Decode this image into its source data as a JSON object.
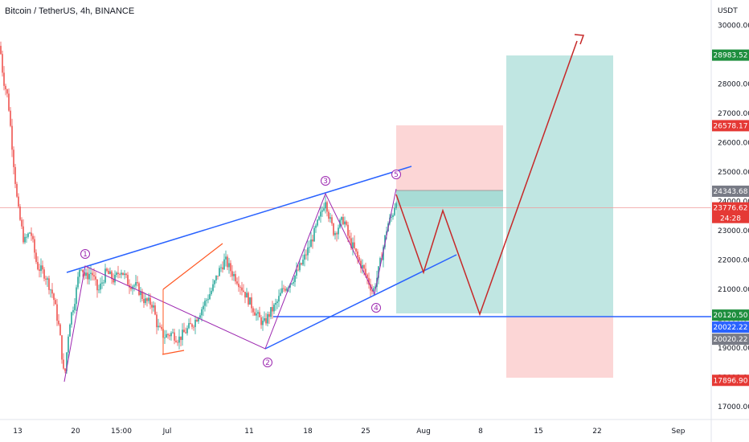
{
  "header": {
    "title": "Bitcoin / TetherUS, 4h, BINANCE"
  },
  "colors": {
    "up": "#26a69a",
    "down": "#ef5350",
    "trend": "#2962ff",
    "wave": "#9c27b0",
    "projection": "#c62828",
    "orange": "#ff5722",
    "stop_zone": "#fcd6d6",
    "target_zone": "#c0e6e2",
    "target_zone_dark": "#a8dcd6"
  },
  "chart_data": {
    "type": "candlestick",
    "symbol": "Bitcoin / TetherUS",
    "interval": "4h",
    "exchange": "BINANCE",
    "y_unit": "USDT",
    "ylim": [
      16800,
      30400
    ],
    "y_ticks": [
      17000,
      18000,
      19000,
      20000,
      21000,
      22000,
      23000,
      24000,
      25000,
      26000,
      27000,
      28000,
      29000,
      30000
    ],
    "x_ticks": [
      "13",
      "20",
      "15:00",
      "Jul",
      "11",
      "18",
      "25",
      "Aug",
      "8",
      "15",
      "22",
      "Sep"
    ],
    "price_path": [
      [
        0,
        29300
      ],
      [
        4,
        28200
      ],
      [
        10,
        27500
      ],
      [
        16,
        25600
      ],
      [
        22,
        23800
      ],
      [
        30,
        22600
      ],
      [
        38,
        23000
      ],
      [
        46,
        21800
      ],
      [
        56,
        21500
      ],
      [
        66,
        20800
      ],
      [
        74,
        19600
      ],
      [
        80,
        17900
      ],
      [
        86,
        19800
      ],
      [
        94,
        20800
      ],
      [
        100,
        21900
      ],
      [
        106,
        21400
      ],
      [
        114,
        21600
      ],
      [
        122,
        20900
      ],
      [
        132,
        21600
      ],
      [
        142,
        21300
      ],
      [
        150,
        21700
      ],
      [
        160,
        21200
      ],
      [
        170,
        21100
      ],
      [
        180,
        20600
      ],
      [
        190,
        20500
      ],
      [
        196,
        19700
      ],
      [
        204,
        19400
      ],
      [
        214,
        19500
      ],
      [
        222,
        19300
      ],
      [
        232,
        19600
      ],
      [
        242,
        19900
      ],
      [
        250,
        20300
      ],
      [
        256,
        20600
      ],
      [
        264,
        21000
      ],
      [
        272,
        21600
      ],
      [
        280,
        22000
      ],
      [
        288,
        21600
      ],
      [
        296,
        21300
      ],
      [
        304,
        20900
      ],
      [
        312,
        20500
      ],
      [
        320,
        20100
      ],
      [
        328,
        19800
      ],
      [
        336,
        20200
      ],
      [
        344,
        20500
      ],
      [
        352,
        21000
      ],
      [
        360,
        21200
      ],
      [
        368,
        21500
      ],
      [
        376,
        21900
      ],
      [
        384,
        22400
      ],
      [
        392,
        23000
      ],
      [
        400,
        23600
      ],
      [
        405,
        24100
      ],
      [
        410,
        23400
      ],
      [
        416,
        22900
      ],
      [
        422,
        23200
      ],
      [
        428,
        23400
      ],
      [
        434,
        22700
      ],
      [
        440,
        22400
      ],
      [
        446,
        22000
      ],
      [
        452,
        21700
      ],
      [
        458,
        21300
      ],
      [
        464,
        20900
      ],
      [
        470,
        21500
      ],
      [
        476,
        22300
      ],
      [
        482,
        23200
      ],
      [
        488,
        23500
      ],
      [
        493,
        24100
      ],
      [
        495,
        23780
      ]
    ],
    "levels": {
      "take_profit": "28983.52",
      "stop_loss_short": "26578.17",
      "entry": "24343.68",
      "current": "23776.62",
      "countdown": "24:28",
      "support": "20120.50",
      "blue_tag": "20022.22",
      "gray_tag": "20020.22",
      "stop_loss_long": "17896.90"
    },
    "wave_labels": [
      "1",
      "2",
      "3",
      "4",
      "5"
    ]
  }
}
